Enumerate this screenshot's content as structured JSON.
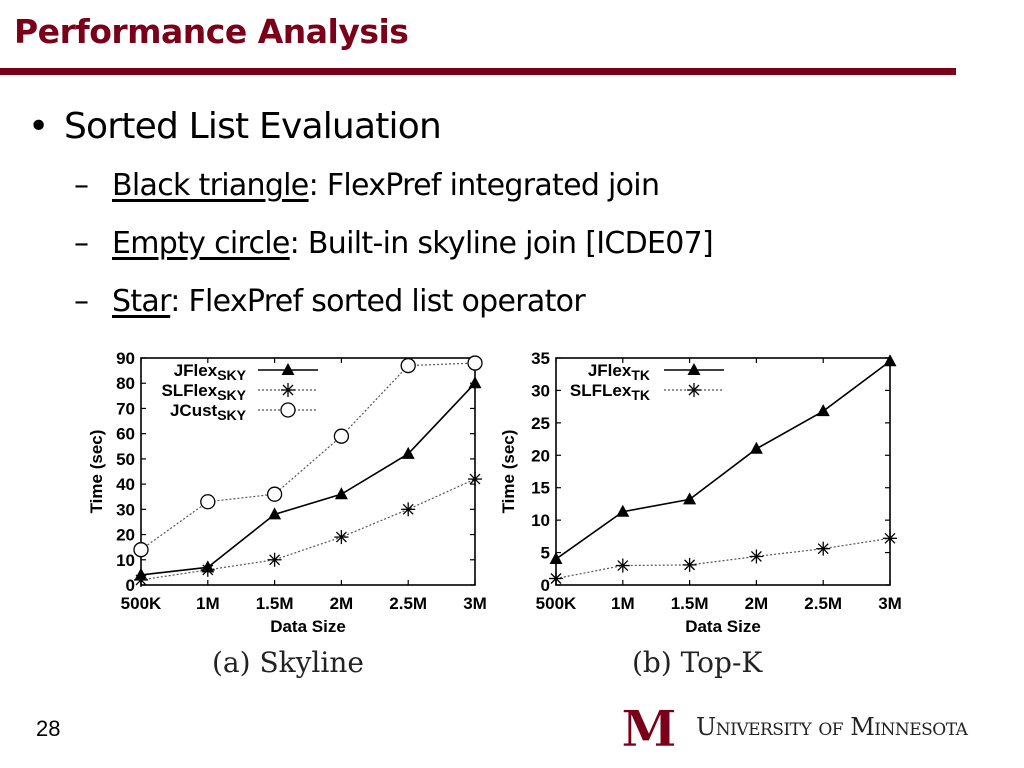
{
  "slide": {
    "title": "Performance Analysis",
    "bullet": "Sorted List Evaluation",
    "bullet_marker": "•",
    "sub_marker": "–",
    "items": [
      {
        "key": "Black triangle",
        "rest": ": FlexPref integrated join"
      },
      {
        "key": "Empty circle",
        "rest": ": Built-in skyline join [ICDE07]"
      },
      {
        "key": "Star",
        "rest": ": FlexPref sorted list operator"
      }
    ],
    "page_number": "28",
    "university": "University of Minnesota",
    "logo_text": "M"
  },
  "colors": {
    "accent": "#7a0019"
  },
  "chart_data": [
    {
      "type": "line",
      "caption": "(a) Skyline",
      "xlabel": "Data Size",
      "ylabel": "Time (sec)",
      "categories": [
        "500K",
        "1M",
        "1.5M",
        "2M",
        "2.5M",
        "3M"
      ],
      "ylim": [
        0,
        90
      ],
      "yticks": [
        0,
        10,
        20,
        30,
        40,
        50,
        60,
        70,
        80,
        90
      ],
      "series": [
        {
          "name": "JFlex",
          "sub": "SKY",
          "marker": "triangle",
          "style": "solid",
          "values": [
            4,
            7,
            28,
            36,
            52,
            80
          ]
        },
        {
          "name": "SLFlex",
          "sub": "SKY",
          "marker": "star",
          "style": "dotted",
          "values": [
            2,
            6,
            10,
            19,
            30,
            42
          ]
        },
        {
          "name": "JCust",
          "sub": "SKY",
          "marker": "circle",
          "style": "dotted",
          "values": [
            14,
            33,
            36,
            59,
            87,
            88
          ]
        }
      ]
    },
    {
      "type": "line",
      "caption": "(b) Top-K",
      "xlabel": "Data Size",
      "ylabel": "Time (sec)",
      "categories": [
        "500K",
        "1M",
        "1.5M",
        "2M",
        "2.5M",
        "3M"
      ],
      "ylim": [
        0,
        35
      ],
      "yticks": [
        0,
        5,
        10,
        15,
        20,
        25,
        30,
        35
      ],
      "series": [
        {
          "name": "JFlex",
          "sub": "TK",
          "marker": "triangle",
          "style": "solid",
          "values": [
            4,
            11.3,
            13.2,
            21,
            26.8,
            34.5
          ]
        },
        {
          "name": "SLFLex",
          "sub": "TK",
          "marker": "star",
          "style": "dotted",
          "values": [
            1,
            3,
            3.1,
            4.4,
            5.6,
            7.2
          ]
        }
      ]
    }
  ]
}
